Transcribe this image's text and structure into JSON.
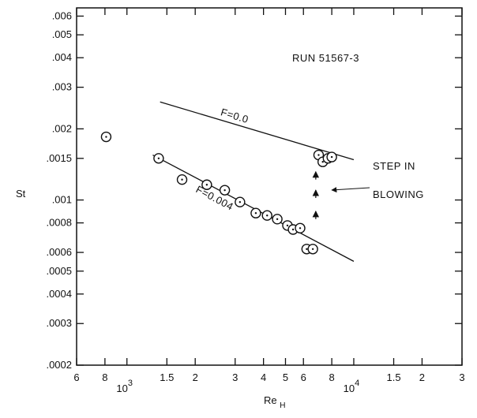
{
  "chart_data": {
    "type": "scatter",
    "x_scale": "log",
    "y_scale": "log",
    "xlim": [
      600,
      30000
    ],
    "ylim": [
      0.0002,
      0.0065
    ],
    "grid": false,
    "xlabel": "Re",
    "xlabel_sub": "H",
    "ylabel": "St",
    "x_ticks": [
      {
        "value": 600,
        "label": "6"
      },
      {
        "value": 800,
        "label": "8"
      },
      {
        "value": 1000,
        "label": "10",
        "exp": "3"
      },
      {
        "value": 1500,
        "label": "1.5"
      },
      {
        "value": 2000,
        "label": "2"
      },
      {
        "value": 3000,
        "label": "3"
      },
      {
        "value": 4000,
        "label": "4"
      },
      {
        "value": 5000,
        "label": "5"
      },
      {
        "value": 6000,
        "label": "6"
      },
      {
        "value": 8000,
        "label": "8"
      },
      {
        "value": 10000,
        "label": "10",
        "exp": "4"
      },
      {
        "value": 15000,
        "label": "1.5"
      },
      {
        "value": 20000,
        "label": "2"
      },
      {
        "value": 30000,
        "label": "3"
      }
    ],
    "y_ticks": [
      {
        "value": 0.0002,
        "label": ".0002"
      },
      {
        "value": 0.0003,
        "label": ".0003"
      },
      {
        "value": 0.0004,
        "label": ".0004"
      },
      {
        "value": 0.0005,
        "label": ".0005"
      },
      {
        "value": 0.0006,
        "label": ".0006"
      },
      {
        "value": 0.0008,
        "label": ".0008"
      },
      {
        "value": 0.001,
        "label": ".001"
      },
      {
        "value": 0.0015,
        "label": ".0015"
      },
      {
        "value": 0.002,
        "label": ".002"
      },
      {
        "value": 0.003,
        "label": ".003"
      },
      {
        "value": 0.004,
        "label": ".004"
      },
      {
        "value": 0.005,
        "label": ".005"
      },
      {
        "value": 0.006,
        "label": ".006"
      }
    ],
    "points": [
      {
        "x": 810,
        "y": 0.00185
      },
      {
        "x": 1380,
        "y": 0.0015
      },
      {
        "x": 1750,
        "y": 0.00122
      },
      {
        "x": 2250,
        "y": 0.00116
      },
      {
        "x": 2700,
        "y": 0.0011
      },
      {
        "x": 3150,
        "y": 0.00098
      },
      {
        "x": 3700,
        "y": 0.00088
      },
      {
        "x": 4150,
        "y": 0.00086
      },
      {
        "x": 4600,
        "y": 0.00083
      },
      {
        "x": 5100,
        "y": 0.00078
      },
      {
        "x": 5400,
        "y": 0.00075
      },
      {
        "x": 5800,
        "y": 0.00076
      },
      {
        "x": 6200,
        "y": 0.00062
      },
      {
        "x": 6600,
        "y": 0.00062
      },
      {
        "x": 7000,
        "y": 0.00155
      },
      {
        "x": 7300,
        "y": 0.00145
      },
      {
        "x": 7700,
        "y": 0.0015
      },
      {
        "x": 8000,
        "y": 0.00152
      }
    ],
    "lines": [
      {
        "label": "F=0.0",
        "x": [
          1400,
          10000
        ],
        "y": [
          0.0026,
          0.00148
        ]
      },
      {
        "label": "F=0.004",
        "x": [
          1300,
          10000
        ],
        "y": [
          0.00155,
          0.00055
        ]
      }
    ],
    "arrows_x": 6800,
    "arrows_y": [
      0.00083,
      0.00102,
      0.00122
    ],
    "annotations": {
      "run": "RUN 51567-3",
      "step_line1": "STEP IN",
      "step_line2": "BLOWING"
    }
  }
}
